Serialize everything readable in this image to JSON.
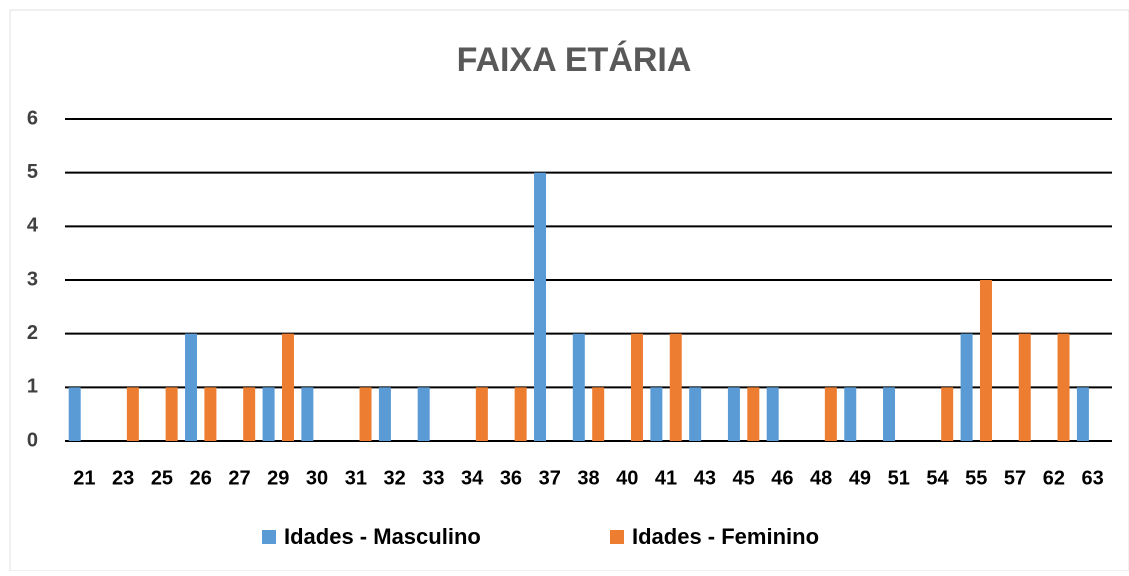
{
  "chart_data": {
    "type": "bar",
    "title": "FAIXA ETÁRIA",
    "categories": [
      "21",
      "23",
      "25",
      "26",
      "27",
      "29",
      "30",
      "31",
      "32",
      "33",
      "34",
      "36",
      "37",
      "38",
      "40",
      "41",
      "43",
      "45",
      "46",
      "48",
      "49",
      "51",
      "54",
      "55",
      "57",
      "62",
      "63"
    ],
    "series": [
      {
        "name": "Idades - Masculino",
        "color": "#5b9bd5",
        "values": [
          1,
          0,
          0,
          2,
          0,
          1,
          1,
          0,
          1,
          1,
          0,
          0,
          5,
          2,
          0,
          1,
          1,
          1,
          1,
          0,
          1,
          1,
          0,
          2,
          0,
          0,
          1
        ]
      },
      {
        "name": "Idades - Feminino",
        "color": "#ed7d31",
        "values": [
          0,
          1,
          1,
          1,
          1,
          2,
          0,
          1,
          0,
          0,
          1,
          1,
          0,
          1,
          2,
          2,
          0,
          1,
          0,
          1,
          0,
          0,
          1,
          3,
          2,
          2,
          0
        ]
      }
    ],
    "ylim": [
      0,
      6
    ],
    "yticks": [
      0,
      1,
      2,
      3,
      4,
      5,
      6
    ],
    "grid": true,
    "legend": "bottom"
  }
}
